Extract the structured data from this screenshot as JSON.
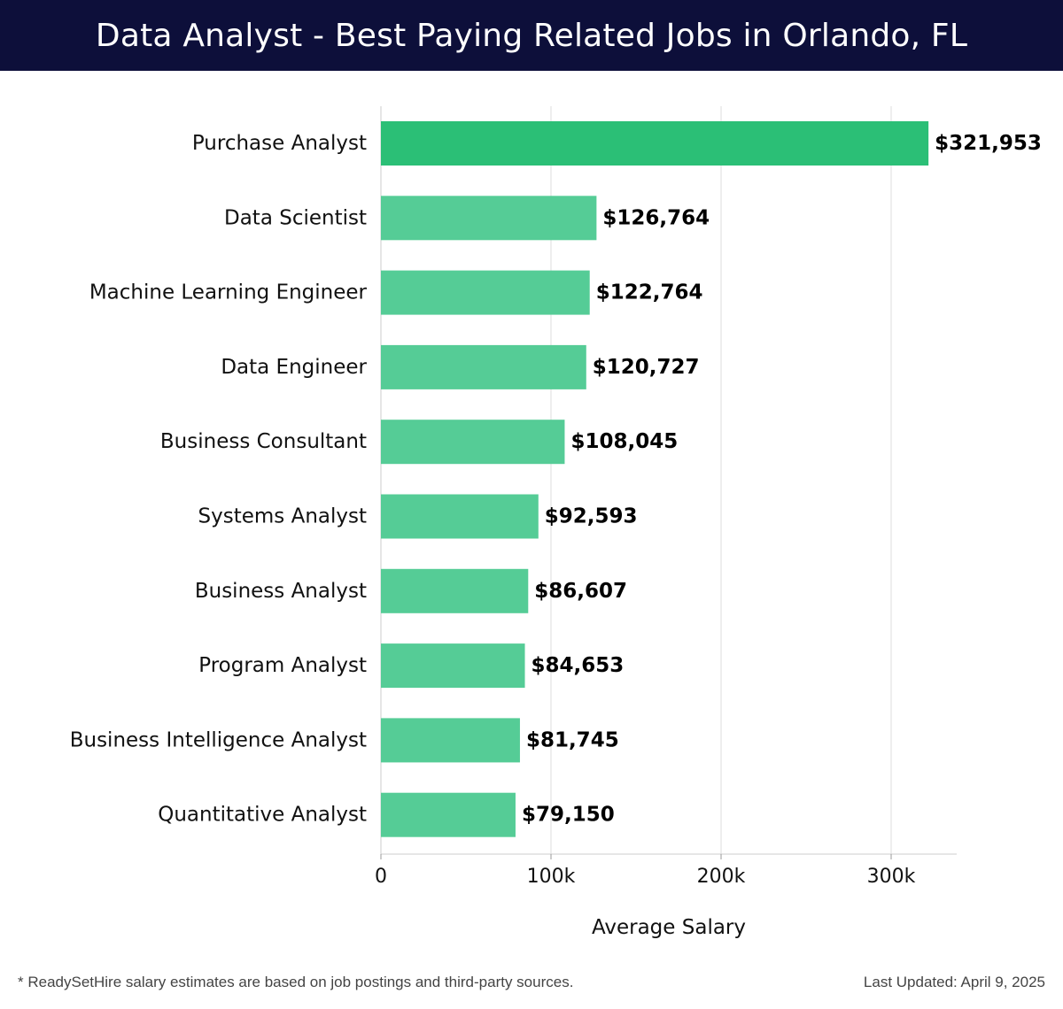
{
  "header": {
    "title": "Data Analyst - Best Paying Related Jobs in Orlando, FL"
  },
  "footer": {
    "note": "* ReadySetHire salary estimates are based on job postings and third-party sources.",
    "updated": "Last Updated: April 9, 2025"
  },
  "colors": {
    "header_bg": "#0d0f3a",
    "top_bar": "#2bbf76",
    "bar": "#55cc96",
    "grid": "#dddddd"
  },
  "chart_data": {
    "type": "bar",
    "orientation": "horizontal",
    "title": "Data Analyst - Best Paying Related Jobs in Orlando, FL",
    "xlabel": "Average Salary",
    "ylabel": "",
    "xlim": [
      0,
      340000
    ],
    "xticks": [
      0,
      100000,
      200000,
      300000
    ],
    "xtick_labels": [
      "0",
      "100k",
      "200k",
      "300k"
    ],
    "grid": "vertical",
    "categories": [
      "Purchase Analyst",
      "Data Scientist",
      "Machine Learning Engineer",
      "Data Engineer",
      "Business Consultant",
      "Systems Analyst",
      "Business Analyst",
      "Program Analyst",
      "Business Intelligence Analyst",
      "Quantitative Analyst"
    ],
    "values": [
      321953,
      126764,
      122764,
      120727,
      108045,
      92593,
      86607,
      84653,
      81745,
      79150
    ],
    "value_labels": [
      "$321,953",
      "$126,764",
      "$122,764",
      "$120,727",
      "$108,045",
      "$92,593",
      "$86,607",
      "$84,653",
      "$81,745",
      "$79,150"
    ]
  }
}
